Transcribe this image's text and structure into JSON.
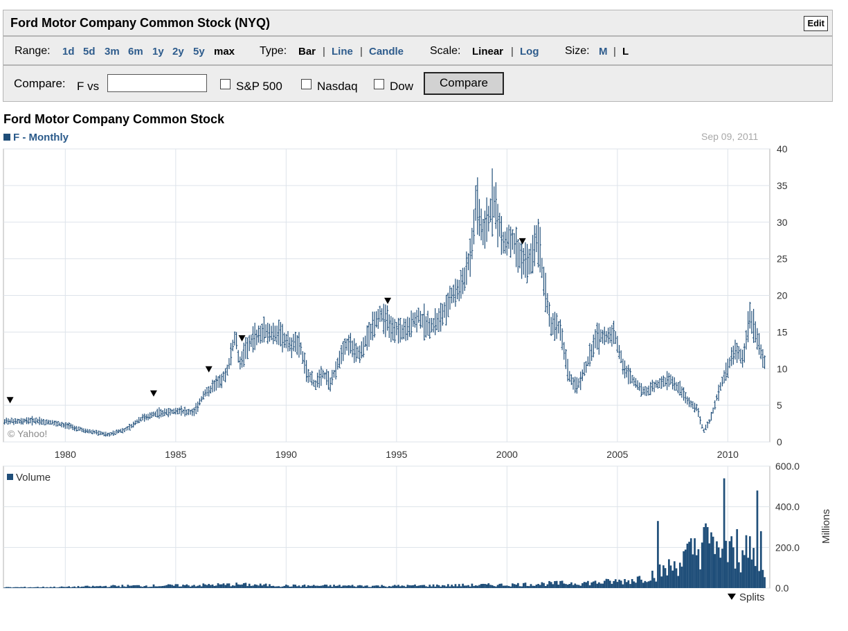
{
  "header": {
    "title": "Ford Motor Company Common Stock (NYQ)",
    "edit_label": "Edit"
  },
  "controls": {
    "range_label": "Range:",
    "ranges": [
      "1d",
      "5d",
      "3m",
      "6m",
      "1y",
      "2y",
      "5y",
      "max"
    ],
    "range_selected": "max",
    "type_label": "Type:",
    "types": [
      "Bar",
      "Line",
      "Candle"
    ],
    "type_selected": "Bar",
    "scale_label": "Scale:",
    "scales": [
      "Linear",
      "Log"
    ],
    "scale_selected": "Linear",
    "size_label": "Size:",
    "sizes": [
      "M",
      "L"
    ],
    "size_selected": "L",
    "separator": "|"
  },
  "compare": {
    "label": "Compare:",
    "symbol_vs": "F vs",
    "input_value": "",
    "checkboxes": [
      "S&P 500",
      "Nasdaq",
      "Dow"
    ],
    "button_label": "Compare"
  },
  "chart_title": "Ford Motor Company Common Stock",
  "series_label": "F - Monthly",
  "date_label": "Sep 09, 2011",
  "colors": {
    "series": "#1f4e79",
    "grid": "#dde3ea",
    "axis": "#b0b0b0",
    "split_marker": "#000000"
  },
  "chart_data": [
    {
      "type": "bar",
      "frequency": "Monthly",
      "legend": "F - Monthly",
      "x_ticks": [
        "1980",
        "1985",
        "1990",
        "1995",
        "2000",
        "2005",
        "2010"
      ],
      "y_ticks": [
        "0",
        "5",
        "10",
        "15",
        "20",
        "25",
        "30",
        "35",
        "40"
      ],
      "ylim": [
        0,
        40
      ],
      "watermark": "© Yahoo!",
      "price_anchors": [
        [
          1977.3,
          2.8
        ],
        [
          1978.5,
          2.9
        ],
        [
          1979.5,
          2.6
        ],
        [
          1980.2,
          2.1
        ],
        [
          1981.0,
          1.5
        ],
        [
          1982.0,
          1.0
        ],
        [
          1982.8,
          1.8
        ],
        [
          1983.5,
          3.3
        ],
        [
          1984.2,
          3.9
        ],
        [
          1985.0,
          4.2
        ],
        [
          1985.8,
          4.0
        ],
        [
          1986.3,
          6.5
        ],
        [
          1986.8,
          7.8
        ],
        [
          1987.3,
          9.2
        ],
        [
          1987.7,
          14.8
        ],
        [
          1987.9,
          10.5
        ],
        [
          1988.3,
          13.5
        ],
        [
          1988.8,
          14.8
        ],
        [
          1989.5,
          15.0
        ],
        [
          1990.2,
          13.2
        ],
        [
          1990.6,
          13.5
        ],
        [
          1990.9,
          9.8
        ],
        [
          1991.3,
          7.8
        ],
        [
          1991.7,
          9.2
        ],
        [
          1992.0,
          8.0
        ],
        [
          1992.3,
          10.5
        ],
        [
          1992.8,
          13.5
        ],
        [
          1993.3,
          12.0
        ],
        [
          1993.8,
          15.0
        ],
        [
          1994.3,
          17.5
        ],
        [
          1994.7,
          16.0
        ],
        [
          1995.2,
          15.0
        ],
        [
          1995.6,
          16.0
        ],
        [
          1996.0,
          17.0
        ],
        [
          1996.5,
          15.5
        ],
        [
          1997.0,
          17.0
        ],
        [
          1997.5,
          20.0
        ],
        [
          1998.0,
          21.5
        ],
        [
          1998.4,
          26.5
        ],
        [
          1998.6,
          33.0
        ],
        [
          1998.9,
          29.0
        ],
        [
          1999.2,
          31.0
        ],
        [
          1999.4,
          33.0
        ],
        [
          1999.6,
          30.0
        ],
        [
          1999.9,
          27.0
        ],
        [
          2000.2,
          28.0
        ],
        [
          2000.7,
          24.5
        ],
        [
          2001.1,
          25.0
        ],
        [
          2001.4,
          28.0
        ],
        [
          2001.7,
          21.0
        ],
        [
          2002.0,
          16.0
        ],
        [
          2002.4,
          15.5
        ],
        [
          2002.8,
          9.0
        ],
        [
          2003.2,
          7.5
        ],
        [
          2003.6,
          10.5
        ],
        [
          2004.0,
          14.0
        ],
        [
          2004.4,
          14.5
        ],
        [
          2004.9,
          14.5
        ],
        [
          2005.3,
          10.0
        ],
        [
          2005.8,
          8.0
        ],
        [
          2006.3,
          6.8
        ],
        [
          2006.8,
          8.0
        ],
        [
          2007.4,
          8.5
        ],
        [
          2007.9,
          7.0
        ],
        [
          2008.2,
          5.5
        ],
        [
          2008.6,
          4.5
        ],
        [
          2008.9,
          1.5
        ],
        [
          2009.2,
          3.0
        ],
        [
          2009.5,
          6.0
        ],
        [
          2009.9,
          9.5
        ],
        [
          2010.3,
          12.5
        ],
        [
          2010.7,
          11.5
        ],
        [
          2011.0,
          17.0
        ],
        [
          2011.3,
          14.5
        ],
        [
          2011.6,
          11.0
        ]
      ],
      "split_markers": [
        1977.5,
        1984.0,
        1986.5,
        1988.0,
        1994.6,
        2000.7
      ]
    },
    {
      "type": "bar",
      "legend": "Volume",
      "units": "Millions",
      "y_ticks": [
        "0.0",
        "200.0",
        "400.0",
        "600.0"
      ],
      "ylim": [
        0,
        600
      ],
      "volume_anchors": [
        [
          1977.3,
          4
        ],
        [
          1980.0,
          6
        ],
        [
          1982.5,
          12
        ],
        [
          1985.0,
          14
        ],
        [
          1987.8,
          20
        ],
        [
          1990.0,
          13
        ],
        [
          1995.0,
          12
        ],
        [
          2000.0,
          18
        ],
        [
          2002.0,
          25
        ],
        [
          2004.0,
          30
        ],
        [
          2005.5,
          40
        ],
        [
          2006.8,
          80
        ],
        [
          2007.5,
          120
        ],
        [
          2008.0,
          160
        ],
        [
          2008.7,
          220
        ],
        [
          2009.0,
          250
        ],
        [
          2009.5,
          200
        ],
        [
          2010.0,
          180
        ],
        [
          2010.5,
          170
        ],
        [
          2011.0,
          180
        ],
        [
          2011.6,
          120
        ]
      ],
      "volume_spikes": [
        [
          2006.8,
          330
        ],
        [
          2008.9,
          300
        ],
        [
          2009.1,
          300
        ],
        [
          2009.5,
          230
        ],
        [
          2010.2,
          255
        ],
        [
          2010.4,
          290
        ],
        [
          2010.8,
          260
        ],
        [
          2011.0,
          255
        ],
        [
          2011.3,
          480
        ],
        [
          2011.5,
          280
        ]
      ],
      "max_value": 540,
      "max_at": 2009.8,
      "footer": "Splits"
    }
  ]
}
